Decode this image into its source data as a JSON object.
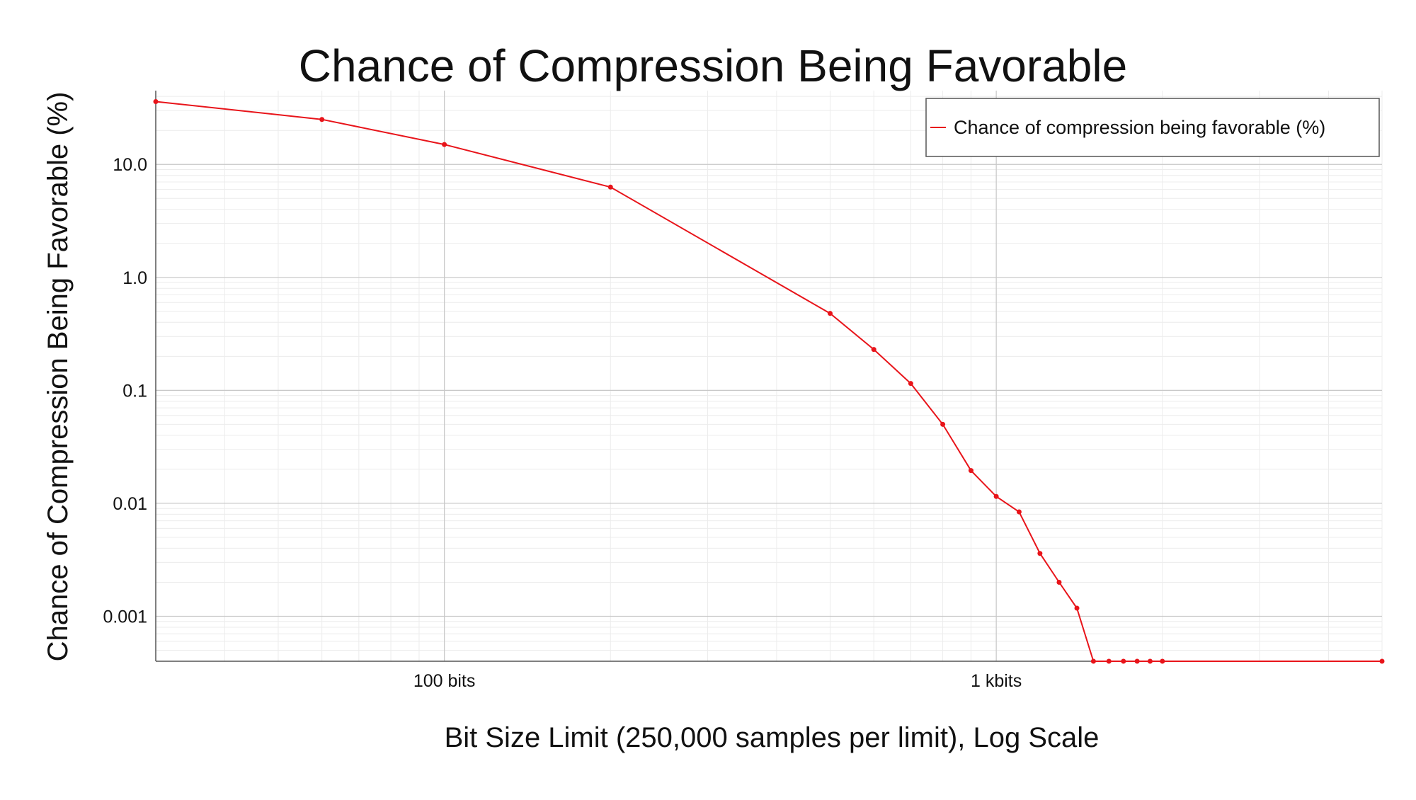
{
  "chart_data": {
    "type": "line",
    "title": "Chance of Compression Being Favorable",
    "xlabel": "Bit Size Limit (250,000 samples per limit), Log Scale",
    "ylabel": "Chance of Compression Being Favorable (%)",
    "xscale": "log",
    "yscale": "log",
    "xlim": [
      30,
      5000
    ],
    "ylim": [
      0.0004,
      45
    ],
    "grid": true,
    "legend_position": "top-right",
    "x_ticks": [
      {
        "value": 100,
        "label": "100 bits"
      },
      {
        "value": 1000,
        "label": "1 kbits"
      }
    ],
    "y_ticks": [
      {
        "value": 10,
        "label": "10.0"
      },
      {
        "value": 1,
        "label": "1.0"
      },
      {
        "value": 0.1,
        "label": "0.1"
      },
      {
        "value": 0.01,
        "label": "0.01"
      },
      {
        "value": 0.001,
        "label": "0.001"
      }
    ],
    "series": [
      {
        "name": "Chance of compression being favorable (%)",
        "color": "#e8141a",
        "points": [
          {
            "x": 30,
            "y": 36
          },
          {
            "x": 60,
            "y": 25
          },
          {
            "x": 100,
            "y": 15
          },
          {
            "x": 200,
            "y": 6.3
          },
          {
            "x": 500,
            "y": 0.48
          },
          {
            "x": 600,
            "y": 0.23
          },
          {
            "x": 700,
            "y": 0.115
          },
          {
            "x": 800,
            "y": 0.05
          },
          {
            "x": 900,
            "y": 0.0195
          },
          {
            "x": 1000,
            "y": 0.0115
          },
          {
            "x": 1100,
            "y": 0.0084
          },
          {
            "x": 1200,
            "y": 0.0036
          },
          {
            "x": 1300,
            "y": 0.002
          },
          {
            "x": 1400,
            "y": 0.00118
          },
          {
            "x": 1500,
            "y": 0.0004
          },
          {
            "x": 1600,
            "y": 0.0004
          },
          {
            "x": 1700,
            "y": 0.0004
          },
          {
            "x": 1800,
            "y": 0.0004
          },
          {
            "x": 1900,
            "y": 0.0004
          },
          {
            "x": 2000,
            "y": 0.0004
          },
          {
            "x": 5000,
            "y": 0.0004
          }
        ]
      }
    ]
  }
}
